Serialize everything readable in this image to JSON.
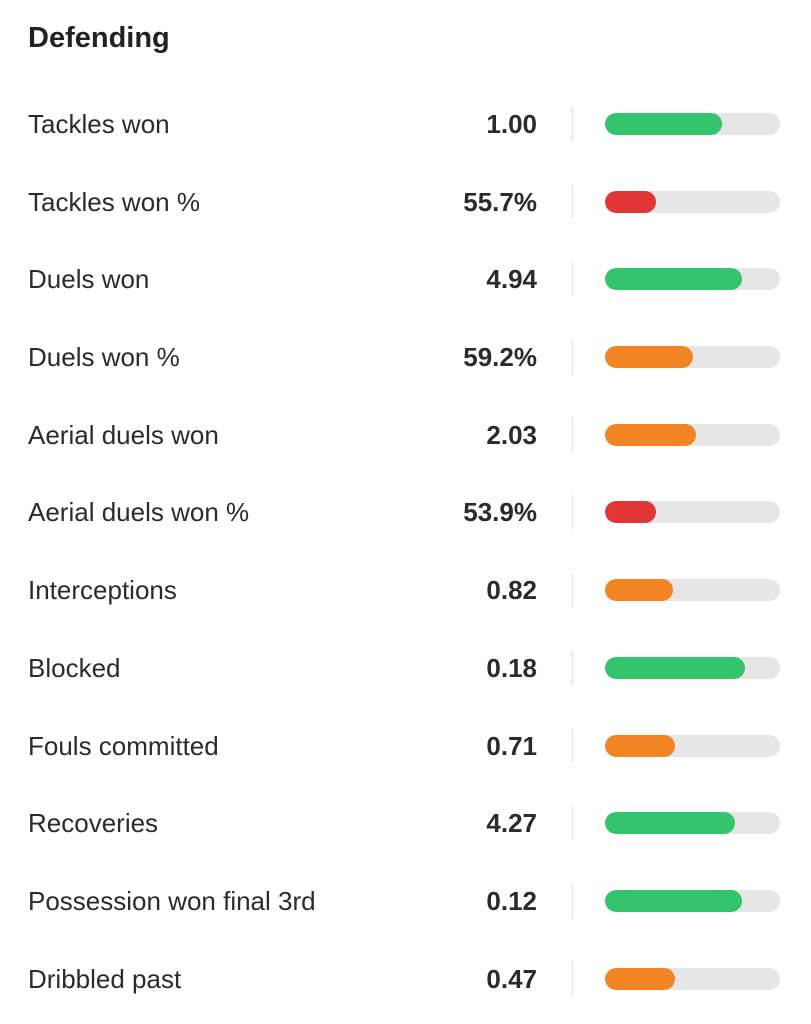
{
  "section": {
    "title": "Defending"
  },
  "colors": {
    "good": "#34c46b",
    "average": "#f28424",
    "poor": "#e03636",
    "track": "#e6e6e6"
  },
  "stats": [
    {
      "label": "Tackles won",
      "value": "1.00",
      "percentile": 0.67,
      "rating": "good"
    },
    {
      "label": "Tackles won %",
      "value": "55.7%",
      "percentile": 0.29,
      "rating": "poor"
    },
    {
      "label": "Duels won",
      "value": "4.94",
      "percentile": 0.78,
      "rating": "good"
    },
    {
      "label": "Duels won %",
      "value": "59.2%",
      "percentile": 0.5,
      "rating": "average"
    },
    {
      "label": "Aerial duels won",
      "value": "2.03",
      "percentile": 0.52,
      "rating": "average"
    },
    {
      "label": "Aerial duels won %",
      "value": "53.9%",
      "percentile": 0.29,
      "rating": "poor"
    },
    {
      "label": "Interceptions",
      "value": "0.82",
      "percentile": 0.39,
      "rating": "average"
    },
    {
      "label": "Blocked",
      "value": "0.18",
      "percentile": 0.8,
      "rating": "good"
    },
    {
      "label": "Fouls committed",
      "value": "0.71",
      "percentile": 0.4,
      "rating": "average"
    },
    {
      "label": "Recoveries",
      "value": "4.27",
      "percentile": 0.74,
      "rating": "good"
    },
    {
      "label": "Possession won final 3rd",
      "value": "0.12",
      "percentile": 0.78,
      "rating": "good"
    },
    {
      "label": "Dribbled past",
      "value": "0.47",
      "percentile": 0.4,
      "rating": "average"
    }
  ]
}
